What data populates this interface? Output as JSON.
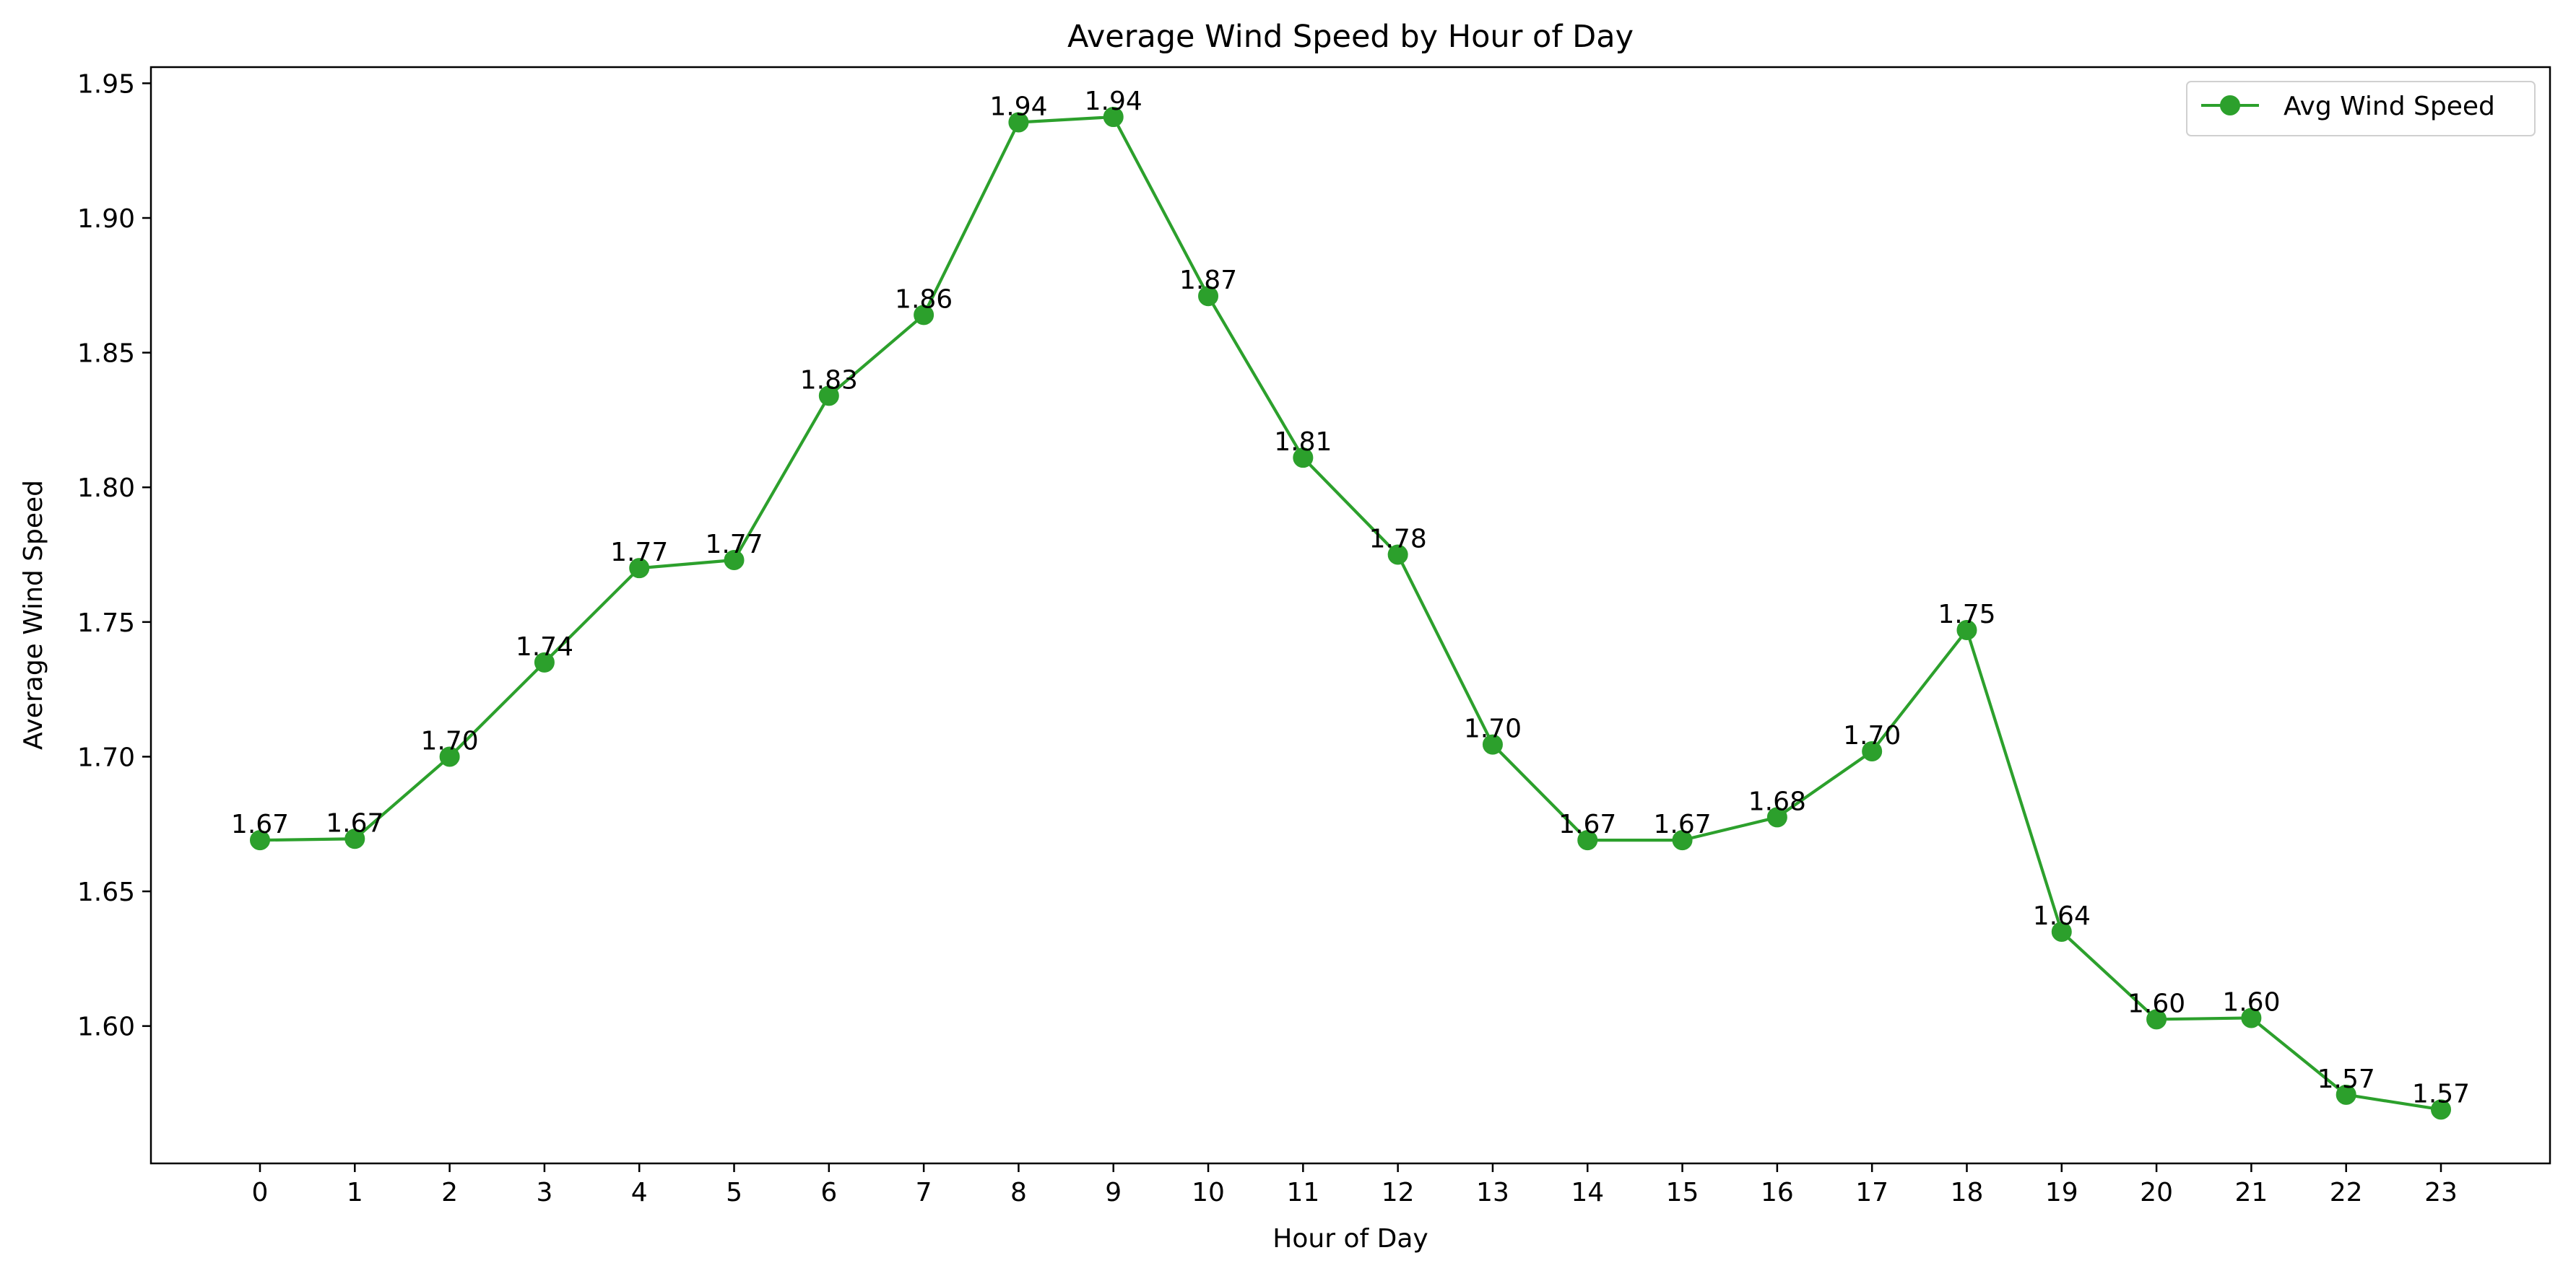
{
  "chart_data": {
    "type": "line",
    "title": "Average Wind Speed by Hour of Day",
    "xlabel": "Hour of Day",
    "ylabel": "Average Wind Speed",
    "x": [
      0,
      1,
      2,
      3,
      4,
      5,
      6,
      7,
      8,
      9,
      10,
      11,
      12,
      13,
      14,
      15,
      16,
      17,
      18,
      19,
      20,
      21,
      22,
      23
    ],
    "x_ticks": [
      "0",
      "1",
      "2",
      "3",
      "4",
      "5",
      "6",
      "7",
      "8",
      "9",
      "10",
      "11",
      "12",
      "13",
      "14",
      "15",
      "16",
      "17",
      "18",
      "19",
      "20",
      "21",
      "22",
      "23"
    ],
    "xlim": [
      -1.15,
      24.15
    ],
    "ylim": [
      1.549,
      1.956
    ],
    "y_ticks": [
      1.6,
      1.65,
      1.7,
      1.75,
      1.8,
      1.85,
      1.9,
      1.95
    ],
    "y_tick_labels": [
      "1.60",
      "1.65",
      "1.70",
      "1.75",
      "1.80",
      "1.85",
      "1.90",
      "1.95"
    ],
    "grid": false,
    "legend_position": "top-right",
    "series": [
      {
        "name": "Avg Wind Speed",
        "color": "#2ca02c",
        "marker": "circle",
        "values": [
          1.669,
          1.6695,
          1.7,
          1.735,
          1.77,
          1.773,
          1.834,
          1.864,
          1.9355,
          1.9375,
          1.871,
          1.811,
          1.775,
          1.7045,
          1.669,
          1.669,
          1.6775,
          1.702,
          1.747,
          1.635,
          1.6025,
          1.603,
          1.5745,
          1.569
        ],
        "labels": [
          "1.67",
          "1.67",
          "1.70",
          "1.74",
          "1.77",
          "1.77",
          "1.83",
          "1.86",
          "1.94",
          "1.94",
          "1.87",
          "1.81",
          "1.78",
          "1.70",
          "1.67",
          "1.67",
          "1.68",
          "1.70",
          "1.75",
          "1.64",
          "1.60",
          "1.60",
          "1.57",
          "1.57"
        ]
      }
    ]
  }
}
